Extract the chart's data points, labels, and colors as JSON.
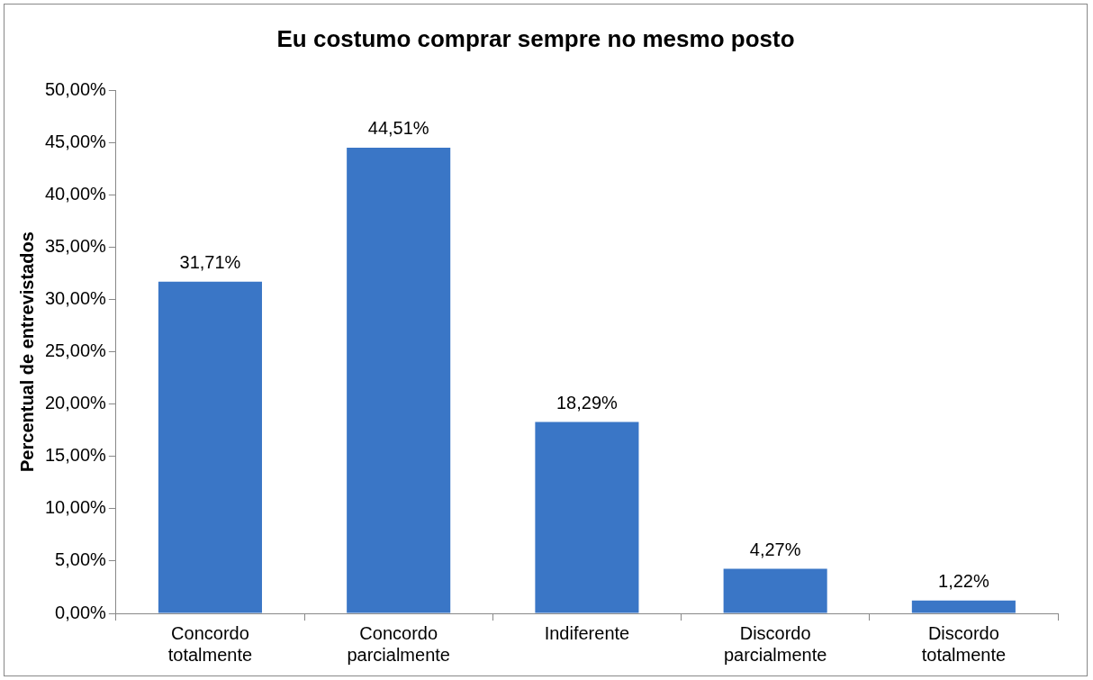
{
  "chart_data": {
    "type": "bar",
    "title": "Eu costumo comprar sempre no mesmo posto",
    "ylabel": "Percentual de entrevistados",
    "categories": [
      "Concordo totalmente",
      "Concordo parcialmente",
      "Indiferente",
      "Discordo parcialmente",
      "Discordo totalmente"
    ],
    "values": [
      31.71,
      44.51,
      18.29,
      4.27,
      1.22
    ],
    "color": "#3a76c6",
    "value_labels": [
      "31,71%",
      "44,51%",
      "18,29%",
      "4,27%",
      "1,22%"
    ],
    "ylim": [
      0,
      50
    ],
    "yticks": [
      {
        "value": 0,
        "label": "0,00%"
      },
      {
        "value": 5,
        "label": "5,00%"
      },
      {
        "value": 10,
        "label": "10,00%"
      },
      {
        "value": 15,
        "label": "15,00%"
      },
      {
        "value": 20,
        "label": "20,00%"
      },
      {
        "value": 25,
        "label": "25,00%"
      },
      {
        "value": 30,
        "label": "30,00%"
      },
      {
        "value": 35,
        "label": "35,00%"
      },
      {
        "value": 40,
        "label": "40,00%"
      },
      {
        "value": 45,
        "label": "45,00%"
      },
      {
        "value": 50,
        "label": "50,00%"
      }
    ],
    "grid": false,
    "legend": false
  }
}
